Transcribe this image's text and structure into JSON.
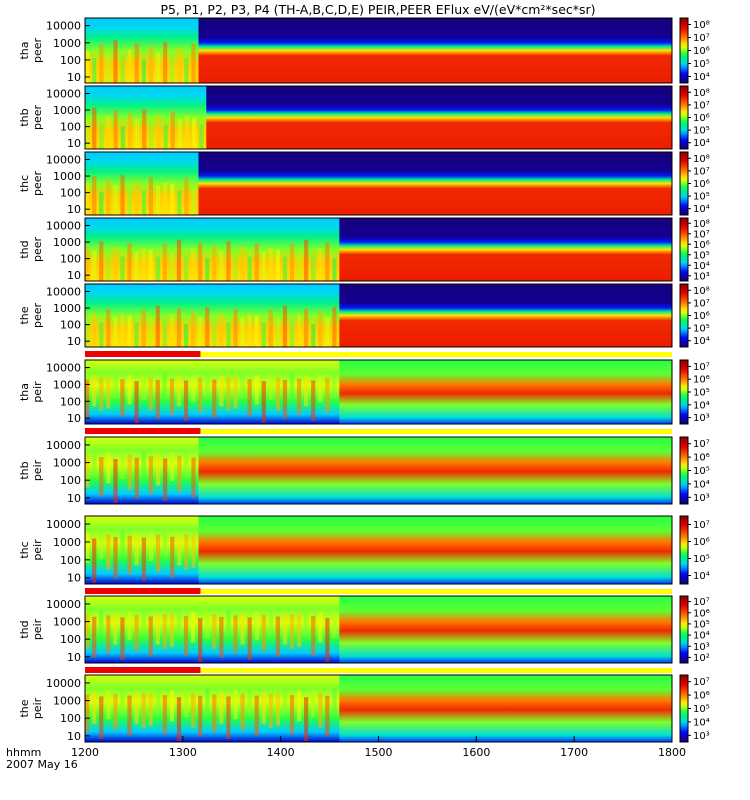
{
  "title": "P5, P1, P2, P3, P4 (TH-A,B,C,D,E) PEIR,PEER EFlux eV/(eV*cm²*sec*sr)",
  "chart_data": {
    "type": "heatmap",
    "title": "P5, P1, P2, P3, P4 (TH-A,B,C,D,E) PEIR,PEER EFlux eV/(eV*cm²*sec*sr)",
    "x_tick_labels": [
      "1200",
      "1300",
      "1400",
      "1500",
      "1600",
      "1700",
      "1800"
    ],
    "x_label_line1": "hhmm",
    "x_label_line2": "2007 May 16",
    "y_tick_labels": [
      "10",
      "100",
      "1000",
      "10000"
    ],
    "panels": [
      {
        "probe": "tha",
        "species": "peer",
        "colorbar_ticks": [
          "10⁴",
          "10⁵",
          "10⁶",
          "10⁷",
          "10⁸"
        ],
        "cmin": 3.5,
        "cmax": 8.5,
        "transition_hhmm": 1316,
        "red_bar": false
      },
      {
        "probe": "thb",
        "species": "peer",
        "colorbar_ticks": [
          "10⁴",
          "10⁵",
          "10⁶",
          "10⁷",
          "10⁸"
        ],
        "cmin": 3.5,
        "cmax": 8.5,
        "transition_hhmm": 1324,
        "red_bar": false
      },
      {
        "probe": "thc",
        "species": "peer",
        "colorbar_ticks": [
          "10⁴",
          "10⁵",
          "10⁶",
          "10⁷",
          "10⁸"
        ],
        "cmin": 3.5,
        "cmax": 8.5,
        "transition_hhmm": 1316,
        "red_bar": false
      },
      {
        "probe": "thd",
        "species": "peer",
        "colorbar_ticks": [
          "10³",
          "10⁴",
          "10⁵",
          "10⁶",
          "10⁷",
          "10⁸"
        ],
        "cmin": 2.5,
        "cmax": 8.5,
        "transition_hhmm": 1460,
        "red_bar": false
      },
      {
        "probe": "the",
        "species": "peer",
        "colorbar_ticks": [
          "10⁴",
          "10⁵",
          "10⁶",
          "10⁷",
          "10⁸"
        ],
        "cmin": 3.5,
        "cmax": 8.5,
        "transition_hhmm": 1460,
        "red_bar": true
      },
      {
        "probe": "tha",
        "species": "peir",
        "colorbar_ticks": [
          "10³",
          "10⁴",
          "10⁵",
          "10⁶",
          "10⁷"
        ],
        "cmin": 2.5,
        "cmax": 7.5,
        "transition_hhmm": 1460,
        "red_bar": true
      },
      {
        "probe": "thb",
        "species": "peir",
        "colorbar_ticks": [
          "10³",
          "10⁴",
          "10⁵",
          "10⁶",
          "10⁷"
        ],
        "cmin": 2.5,
        "cmax": 7.5,
        "transition_hhmm": 1316,
        "red_bar": false
      },
      {
        "probe": "thc",
        "species": "peir",
        "colorbar_ticks": [
          "10⁴",
          "10⁵",
          "10⁶",
          "10⁷"
        ],
        "cmin": 3.5,
        "cmax": 7.5,
        "transition_hhmm": 1316,
        "red_bar": true
      },
      {
        "probe": "thd",
        "species": "peir",
        "colorbar_ticks": [
          "10²",
          "10³",
          "10⁴",
          "10⁵",
          "10⁶",
          "10⁷"
        ],
        "cmin": 1.5,
        "cmax": 7.5,
        "transition_hhmm": 1460,
        "red_bar": true
      },
      {
        "probe": "the",
        "species": "peir",
        "colorbar_ticks": [
          "10³",
          "10⁴",
          "10⁵",
          "10⁶",
          "10⁷"
        ],
        "cmin": 2.5,
        "cmax": 7.5,
        "transition_hhmm": 1460,
        "red_bar": false
      }
    ],
    "red_bar_range_hhmm": [
      1200,
      1318
    ],
    "colormap": [
      "#1a0066",
      "#0000ff",
      "#00d4ff",
      "#00ff50",
      "#ffff00",
      "#ff6a00",
      "#e60000",
      "#8b0000"
    ]
  }
}
